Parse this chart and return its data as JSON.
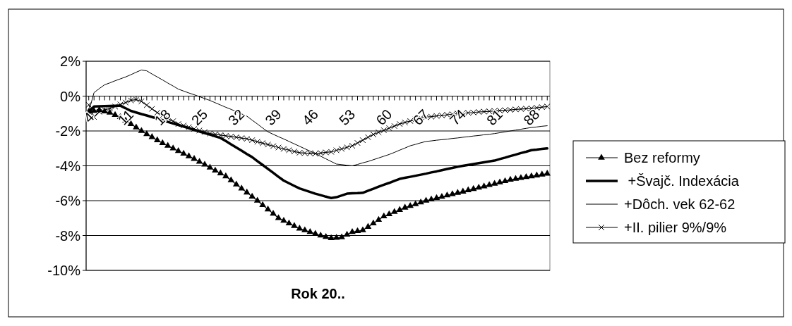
{
  "chart_data": {
    "type": "line",
    "xlabel": "Rok 20..",
    "categories": [
      "4",
      null,
      null,
      null,
      null,
      null,
      null,
      "11",
      null,
      null,
      null,
      null,
      null,
      null,
      "18",
      null,
      null,
      null,
      null,
      null,
      null,
      "25",
      null,
      null,
      null,
      null,
      null,
      null,
      "32",
      null,
      null,
      null,
      null,
      null,
      null,
      "39",
      null,
      null,
      null,
      null,
      null,
      null,
      "46",
      null,
      null,
      null,
      null,
      null,
      null,
      "53",
      null,
      null,
      null,
      null,
      null,
      null,
      "60",
      null,
      null,
      null,
      null,
      null,
      null,
      "67",
      null,
      null,
      null,
      null,
      null,
      null,
      "74",
      null,
      null,
      null,
      null,
      null,
      null,
      "81",
      null,
      null,
      null,
      null,
      null,
      null,
      "88",
      null,
      null,
      null
    ],
    "ylim": [
      -10,
      2
    ],
    "yticks": [
      {
        "value": -10,
        "label": "-10%"
      },
      {
        "value": -8,
        "label": "-8%"
      },
      {
        "value": -6,
        "label": "-6%"
      },
      {
        "value": -4,
        "label": "-4%"
      },
      {
        "value": -2,
        "label": "-2%"
      },
      {
        "value": 0,
        "label": "0%"
      },
      {
        "value": 2,
        "label": "2%"
      }
    ],
    "grid": "y",
    "legend": "right",
    "series": [
      {
        "name": "Bez reformy",
        "color": "#000000",
        "marker": "triangle",
        "values": [
          -0.9,
          -0.85,
          -0.8,
          -0.88,
          -0.95,
          -1.08,
          -1.2,
          -1.4,
          -1.6,
          -1.8,
          -2.0,
          -2.18,
          -2.35,
          -2.53,
          -2.7,
          -2.85,
          -3.0,
          -3.15,
          -3.3,
          -3.45,
          -3.6,
          -3.77,
          -3.93,
          -4.1,
          -4.27,
          -4.43,
          -4.6,
          -4.83,
          -5.07,
          -5.3,
          -5.53,
          -5.77,
          -6.0,
          -6.25,
          -6.5,
          -6.75,
          -7.0,
          -7.15,
          -7.3,
          -7.45,
          -7.6,
          -7.7,
          -7.8,
          -7.9,
          -8.0,
          -8.08,
          -8.15,
          -8.13,
          -8.1,
          -7.95,
          -7.8,
          -7.75,
          -7.7,
          -7.5,
          -7.3,
          -7.1,
          -6.9,
          -6.78,
          -6.65,
          -6.53,
          -6.4,
          -6.3,
          -6.2,
          -6.1,
          -6.0,
          -5.93,
          -5.85,
          -5.78,
          -5.7,
          -5.63,
          -5.55,
          -5.48,
          -5.4,
          -5.33,
          -5.25,
          -5.18,
          -5.1,
          -5.03,
          -4.95,
          -4.88,
          -4.8,
          -4.75,
          -4.7,
          -4.65,
          -4.6,
          -4.55,
          -4.5,
          -4.45
        ]
      },
      {
        "name": " +Švajč. Indexácia",
        "color": "#000000",
        "marker": "none",
        "values": [
          -0.9,
          -0.6,
          -0.59,
          -0.58,
          -0.57,
          -0.56,
          -0.55,
          -0.7,
          -0.85,
          -0.94,
          -1.03,
          -1.11,
          -1.2,
          -1.29,
          -1.38,
          -1.48,
          -1.57,
          -1.66,
          -1.75,
          -1.84,
          -1.94,
          -2.03,
          -2.12,
          -2.21,
          -2.31,
          -2.4,
          -2.58,
          -2.77,
          -2.95,
          -3.13,
          -3.32,
          -3.5,
          -3.73,
          -3.95,
          -4.18,
          -4.4,
          -4.63,
          -4.85,
          -5.0,
          -5.15,
          -5.3,
          -5.4,
          -5.5,
          -5.6,
          -5.68,
          -5.77,
          -5.85,
          -5.8,
          -5.7,
          -5.6,
          -5.58,
          -5.57,
          -5.55,
          -5.43,
          -5.32,
          -5.2,
          -5.09,
          -4.98,
          -4.86,
          -4.75,
          -4.69,
          -4.63,
          -4.57,
          -4.51,
          -4.45,
          -4.38,
          -4.32,
          -4.25,
          -4.18,
          -4.12,
          -4.05,
          -4.0,
          -3.95,
          -3.9,
          -3.85,
          -3.8,
          -3.75,
          -3.7,
          -3.61,
          -3.53,
          -3.44,
          -3.36,
          -3.27,
          -3.19,
          -3.1,
          -3.07,
          -3.03,
          -3.0
        ]
      },
      {
        "name": "+Dôch. vek 62-62",
        "color": "#000000",
        "marker": "none",
        "values": [
          -0.9,
          0.2,
          0.43,
          0.65,
          0.76,
          0.88,
          0.99,
          1.1,
          1.23,
          1.37,
          1.5,
          1.45,
          1.27,
          1.1,
          0.93,
          0.75,
          0.58,
          0.4,
          0.29,
          0.18,
          0.08,
          -0.03,
          -0.14,
          -0.25,
          -0.38,
          -0.51,
          -0.64,
          -0.76,
          -0.89,
          -1.02,
          -1.15,
          -1.38,
          -1.6,
          -1.83,
          -2.05,
          -2.19,
          -2.33,
          -2.46,
          -2.6,
          -2.74,
          -2.88,
          -3.02,
          -3.16,
          -3.3,
          -3.45,
          -3.6,
          -3.75,
          -3.9,
          -3.93,
          -3.97,
          -4.0,
          -3.92,
          -3.83,
          -3.75,
          -3.65,
          -3.55,
          -3.45,
          -3.35,
          -3.23,
          -3.1,
          -2.98,
          -2.85,
          -2.77,
          -2.68,
          -2.6,
          -2.57,
          -2.53,
          -2.5,
          -2.47,
          -2.43,
          -2.4,
          -2.36,
          -2.33,
          -2.29,
          -2.26,
          -2.22,
          -2.19,
          -2.15,
          -2.1,
          -2.05,
          -2.0,
          -1.95,
          -1.9,
          -1.85,
          -1.8,
          -1.77,
          -1.73,
          -1.7
        ]
      },
      {
        "name": "+II. pilier 9%/9%",
        "color": "#000000",
        "marker": "cross",
        "values": [
          -0.5,
          -1.2,
          -0.9,
          -0.8,
          -0.7,
          -0.6,
          -0.48,
          -0.37,
          -0.25,
          -0.2,
          -0.3,
          -0.52,
          -0.73,
          -0.95,
          -1.11,
          -1.28,
          -1.44,
          -1.6,
          -1.69,
          -1.78,
          -1.88,
          -1.97,
          -2.06,
          -2.15,
          -2.19,
          -2.24,
          -2.28,
          -2.32,
          -2.36,
          -2.41,
          -2.45,
          -2.53,
          -2.62,
          -2.7,
          -2.78,
          -2.87,
          -2.95,
          -3.03,
          -3.1,
          -3.18,
          -3.25,
          -3.27,
          -3.28,
          -3.3,
          -3.27,
          -3.23,
          -3.2,
          -3.11,
          -3.03,
          -2.94,
          -2.85,
          -2.69,
          -2.53,
          -2.36,
          -2.2,
          -2.08,
          -1.96,
          -1.84,
          -1.72,
          -1.6,
          -1.51,
          -1.43,
          -1.34,
          -1.25,
          -1.21,
          -1.18,
          -1.14,
          -1.11,
          -1.07,
          -1.04,
          -1.0,
          -0.98,
          -0.96,
          -0.94,
          -0.91,
          -0.89,
          -0.87,
          -0.85,
          -0.83,
          -0.81,
          -0.79,
          -0.76,
          -0.74,
          -0.72,
          -0.7,
          -0.67,
          -0.63,
          -0.6
        ]
      }
    ]
  }
}
